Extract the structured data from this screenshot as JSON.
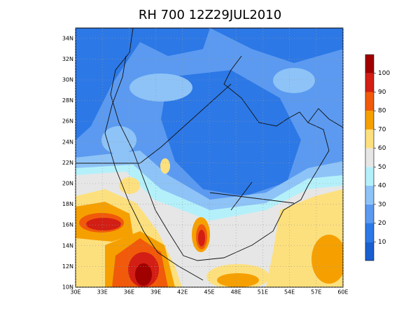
{
  "title": "RH 700 12Z29JUL2010",
  "map": {
    "lonlim": [
      30,
      60
    ],
    "latlim": [
      10,
      35
    ],
    "lon_ticks": [
      {
        "value": 30,
        "label": "30E"
      },
      {
        "value": 33,
        "label": "33E"
      },
      {
        "value": 36,
        "label": "36E"
      },
      {
        "value": 39,
        "label": "39E"
      },
      {
        "value": 42,
        "label": "42E"
      },
      {
        "value": 45,
        "label": "45E"
      },
      {
        "value": 48,
        "label": "48E"
      },
      {
        "value": 51,
        "label": "51E"
      },
      {
        "value": 54,
        "label": "54E"
      },
      {
        "value": 57,
        "label": "57E"
      },
      {
        "value": 60,
        "label": "60E"
      }
    ],
    "lat_ticks": [
      {
        "value": 10,
        "label": "10N"
      },
      {
        "value": 12,
        "label": "12N"
      },
      {
        "value": 14,
        "label": "14N"
      },
      {
        "value": 16,
        "label": "16N"
      },
      {
        "value": 18,
        "label": "18N"
      },
      {
        "value": 20,
        "label": "20N"
      },
      {
        "value": 22,
        "label": "22N"
      },
      {
        "value": 24,
        "label": "24N"
      },
      {
        "value": 26,
        "label": "26N"
      },
      {
        "value": 28,
        "label": "28N"
      },
      {
        "value": 30,
        "label": "30N"
      },
      {
        "value": 32,
        "label": "32N"
      },
      {
        "value": 34,
        "label": "34N"
      }
    ],
    "grid": true
  },
  "colorbar": {
    "levels": [
      10,
      20,
      30,
      40,
      50,
      60,
      70,
      80,
      90,
      100
    ],
    "colors": [
      "#1a5fd0",
      "#2c78e6",
      "#5b9af0",
      "#8ec3f7",
      "#b4f0fa",
      "#e6e6e6",
      "#fde07e",
      "#f5a000",
      "#f05a0a",
      "#d21e14",
      "#a00000"
    ]
  }
}
